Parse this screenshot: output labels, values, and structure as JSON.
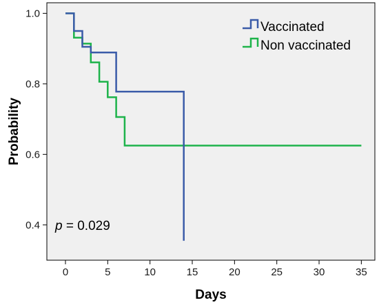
{
  "chart_data": {
    "type": "line",
    "title": "",
    "xlabel": "Days",
    "ylabel": "Probability",
    "xlim": [
      -2.2,
      36.6
    ],
    "ylim": [
      0.3,
      1.03
    ],
    "xticks": [
      0,
      5,
      10,
      15,
      20,
      25,
      30,
      35
    ],
    "yticks": [
      0.4,
      0.6,
      0.8,
      1.0
    ],
    "xtick_labels": [
      "0",
      "5",
      "10",
      "15",
      "20",
      "25",
      "30",
      "35"
    ],
    "ytick_labels": [
      "0.4",
      "0.6",
      "0.8",
      "1.0"
    ],
    "grid": false,
    "legend_position": "top-right",
    "annotation": {
      "italic": "p",
      "rest": " = 0.029"
    },
    "series": [
      {
        "name": "Vaccinated",
        "color": "#3a5ba8",
        "step": "post",
        "points": [
          [
            0,
            1.0
          ],
          [
            1,
            1.0
          ],
          [
            1,
            0.95
          ],
          [
            2,
            0.95
          ],
          [
            2,
            0.905
          ],
          [
            3,
            0.905
          ],
          [
            3,
            0.889
          ],
          [
            6,
            0.889
          ],
          [
            6,
            0.778
          ],
          [
            14,
            0.778
          ],
          [
            14,
            0.355
          ]
        ]
      },
      {
        "name": "Non vaccinated",
        "color": "#1db34a",
        "step": "post",
        "points": [
          [
            0,
            1.0
          ],
          [
            1,
            1.0
          ],
          [
            1,
            0.931
          ],
          [
            2,
            0.931
          ],
          [
            2,
            0.914
          ],
          [
            3,
            0.914
          ],
          [
            3,
            0.861
          ],
          [
            4,
            0.861
          ],
          [
            4,
            0.806
          ],
          [
            5,
            0.806
          ],
          [
            5,
            0.762
          ],
          [
            6,
            0.762
          ],
          [
            6,
            0.706
          ],
          [
            7,
            0.706
          ],
          [
            7,
            0.625
          ],
          [
            35,
            0.625
          ]
        ]
      }
    ]
  }
}
